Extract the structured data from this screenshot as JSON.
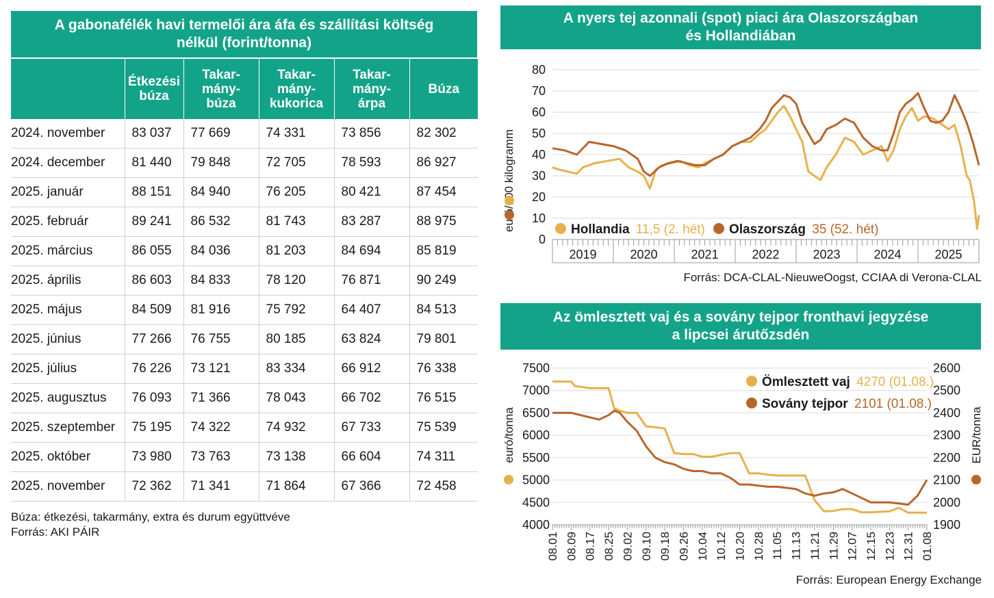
{
  "grain_table": {
    "title": "A gabonafélék havi termelői ára áfa és szállítási költség nélkül (forint/tonna)",
    "headers": [
      "",
      "Étkezési\nbúza",
      "Takar-\nmány-\nbúza",
      "Takar-\nmány-\nkukorica",
      "Takar-\nmány-\nárpa",
      "Búza"
    ],
    "rows": [
      [
        "2024. november",
        "83 037",
        "77 669",
        "74 331",
        "73 856",
        "82 302"
      ],
      [
        "2024. december",
        "81 440",
        "79 848",
        "72 705",
        "78 593",
        "86 927"
      ],
      [
        "2025. január",
        "88 151",
        "84 940",
        "76 205",
        "80 421",
        "87 454"
      ],
      [
        "2025. február",
        "89 241",
        "86 532",
        "81 743",
        "83 287",
        "88 975"
      ],
      [
        "2025. március",
        "86 055",
        "84 036",
        "81 203",
        "84 694",
        "85 819"
      ],
      [
        "2025. április",
        "86 603",
        "84 833",
        "78 120",
        "76 871",
        "90 249"
      ],
      [
        "2025. május",
        "84 509",
        "81 916",
        "75 792",
        "64 407",
        "84 513"
      ],
      [
        "2025. június",
        "77 266",
        "76 755",
        "80 185",
        "63 824",
        "79 801"
      ],
      [
        "2025. július",
        "76 226",
        "73 121",
        "83 334",
        "66 912",
        "76 338"
      ],
      [
        "2025. augusztus",
        "76 093",
        "71 366",
        "78 043",
        "66 702",
        "76 515"
      ],
      [
        "2025. szeptember",
        "75 195",
        "74 322",
        "74 932",
        "67 733",
        "75 539"
      ],
      [
        "2025. október",
        "73 980",
        "73 763",
        "73 138",
        "66 604",
        "74 311"
      ],
      [
        "2025. november",
        "72 362",
        "71 341",
        "71 864",
        "67 366",
        "72 458"
      ]
    ],
    "note": "Búza: étkezési, takarmány, extra és durum együttvéve",
    "source": "Forrás: AKI PÁIR"
  },
  "colors": {
    "teal": "#13a389",
    "light": "#e8b04a",
    "dark": "#b8652a"
  },
  "chart_data": [
    {
      "type": "line",
      "title_line1": "A nyers tej azonnali (spot) piaci ára Olaszországban",
      "title_line2": "és Hollandiában",
      "ylabel": "euró/100 kilogramm",
      "ylim": [
        0,
        80
      ],
      "yticks": [
        "0",
        "10",
        "20",
        "30",
        "40",
        "50",
        "60",
        "70",
        "80"
      ],
      "xlim": [
        2018.5,
        2025.5
      ],
      "years": [
        "2019",
        "2020",
        "2021",
        "2022",
        "2023",
        "2024",
        "2025"
      ],
      "series": [
        {
          "name": "Hollandia",
          "legend_value": "11,5 (2. hét)",
          "x": [
            2018.5,
            2018.6,
            2018.75,
            2018.9,
            2019.0,
            2019.2,
            2019.4,
            2019.6,
            2019.75,
            2019.9,
            2020.0,
            2020.1,
            2020.2,
            2020.3,
            2020.45,
            2020.6,
            2020.75,
            2020.9,
            2021.0,
            2021.15,
            2021.3,
            2021.45,
            2021.6,
            2021.75,
            2021.9,
            2022.0,
            2022.1,
            2022.2,
            2022.3,
            2022.4,
            2022.5,
            2022.6,
            2022.7,
            2022.8,
            2022.9,
            2023.0,
            2023.15,
            2023.3,
            2023.45,
            2023.6,
            2023.75,
            2023.9,
            2024.0,
            2024.1,
            2024.2,
            2024.3,
            2024.4,
            2024.5,
            2024.6,
            2024.75,
            2024.9,
            2025.0,
            2025.1,
            2025.2,
            2025.3,
            2025.35,
            2025.42,
            2025.47,
            2025.5
          ],
          "y": [
            34,
            33,
            32,
            31,
            34,
            36,
            37,
            38,
            34,
            32,
            30,
            24,
            33,
            35,
            36,
            37,
            35,
            34,
            36,
            38,
            40,
            44,
            46,
            46,
            50,
            52,
            56,
            60,
            63,
            58,
            52,
            46,
            32,
            30,
            28,
            34,
            40,
            48,
            46,
            40,
            42,
            44,
            37,
            42,
            52,
            58,
            62,
            56,
            58,
            57,
            54,
            52,
            54,
            44,
            30,
            28,
            18,
            5,
            11.5
          ]
        },
        {
          "name": "Olaszország",
          "legend_value": "35 (52. hét)",
          "x": [
            2018.5,
            2018.7,
            2018.9,
            2019.1,
            2019.3,
            2019.5,
            2019.7,
            2019.9,
            2020.0,
            2020.1,
            2020.25,
            2020.4,
            2020.55,
            2020.7,
            2020.85,
            2021.0,
            2021.15,
            2021.3,
            2021.45,
            2021.6,
            2021.75,
            2021.9,
            2022.0,
            2022.1,
            2022.2,
            2022.3,
            2022.4,
            2022.5,
            2022.6,
            2022.7,
            2022.8,
            2022.9,
            2023.0,
            2023.15,
            2023.3,
            2023.45,
            2023.6,
            2023.75,
            2023.9,
            2024.0,
            2024.1,
            2024.2,
            2024.3,
            2024.4,
            2024.5,
            2024.6,
            2024.7,
            2024.8,
            2024.9,
            2025.0,
            2025.1,
            2025.2,
            2025.3,
            2025.4,
            2025.5
          ],
          "y": [
            43,
            42,
            40,
            46,
            45,
            44,
            42,
            38,
            32,
            30,
            34,
            36,
            37,
            36,
            35,
            35,
            38,
            40,
            44,
            46,
            48,
            52,
            56,
            62,
            65,
            68,
            67,
            64,
            55,
            50,
            45,
            47,
            52,
            54,
            57,
            55,
            48,
            44,
            42,
            42,
            50,
            60,
            64,
            66,
            69,
            62,
            56,
            55,
            56,
            60,
            68,
            62,
            55,
            46,
            35
          ]
        }
      ],
      "source": "Forrás: DCA-CLAL-NieuweOogst, CCIAA di Verona-CLAL"
    },
    {
      "type": "line",
      "title_line1": "Az ömlesztett vaj és a sovány tejpor fronthavi jegyzése",
      "title_line2": "a lipcsei árutőzsdén",
      "ylabel_left": "euró/tonna",
      "ylabel_right": "EUR/tonna",
      "ylim_left": [
        4000,
        7500
      ],
      "ylim_right": [
        1900,
        2600
      ],
      "yticks_left": [
        "4000",
        "4500",
        "5000",
        "5500",
        "6000",
        "6500",
        "7000",
        "7500"
      ],
      "yticks_right": [
        "1900",
        "2000",
        "2100",
        "2200",
        "2300",
        "2400",
        "2500",
        "2600"
      ],
      "categories": [
        "08.01",
        "08.09",
        "08.17",
        "08.25",
        "09.02",
        "09.10",
        "09.18",
        "09.26",
        "10.04",
        "10.12",
        "10.20",
        "10.28",
        "11.05",
        "11.13",
        "11.21",
        "11.29",
        "12.07",
        "12.15",
        "12.23",
        "12.31",
        "01.08"
      ],
      "series": [
        {
          "name": "Ömlesztett vaj",
          "axis": "left",
          "legend_value": "4270 (01.08.)",
          "x": [
            0,
            1,
            1.2,
            2,
            2.5,
            3,
            3.3,
            3.6,
            4,
            4.5,
            5,
            5.5,
            6,
            6.5,
            7,
            7.5,
            8,
            8.5,
            9,
            9.5,
            10,
            10.5,
            11,
            11.5,
            12,
            12.5,
            13,
            13.5,
            14,
            14.5,
            15,
            15.5,
            16,
            16.5,
            17,
            17.5,
            18,
            18.5,
            19,
            19.5,
            20
          ],
          "y": [
            7200,
            7200,
            7100,
            7050,
            7050,
            7050,
            6600,
            6550,
            6500,
            6500,
            6200,
            6180,
            6150,
            5600,
            5580,
            5580,
            5520,
            5520,
            5560,
            5600,
            5600,
            5150,
            5150,
            5120,
            5100,
            5100,
            5100,
            5100,
            4550,
            4300,
            4310,
            4350,
            4350,
            4280,
            4280,
            4290,
            4300,
            4380,
            4270,
            4270,
            4270
          ]
        },
        {
          "name": "Sovány tejpor",
          "axis": "right",
          "legend_value": "2101 (01.08.)",
          "x": [
            0,
            0.5,
            1,
            1.5,
            2,
            2.5,
            3,
            3.3,
            3.6,
            4,
            4.5,
            5,
            5.5,
            6,
            6.5,
            7,
            7.5,
            8,
            8.5,
            9,
            9.5,
            10,
            10.5,
            11,
            11.5,
            12,
            12.5,
            13,
            13.5,
            14,
            14.5,
            15,
            15.5,
            16,
            16.5,
            17,
            17.5,
            18,
            18.5,
            19,
            19.5,
            20
          ],
          "y": [
            2400,
            2400,
            2400,
            2390,
            2380,
            2370,
            2390,
            2410,
            2400,
            2360,
            2320,
            2250,
            2200,
            2180,
            2170,
            2150,
            2140,
            2140,
            2130,
            2130,
            2110,
            2080,
            2080,
            2075,
            2070,
            2070,
            2065,
            2060,
            2040,
            2030,
            2040,
            2045,
            2060,
            2040,
            2020,
            2000,
            2000,
            2000,
            1995,
            1990,
            2030,
            2101
          ]
        }
      ],
      "source": "Forrás: European Energy Exchange"
    }
  ]
}
